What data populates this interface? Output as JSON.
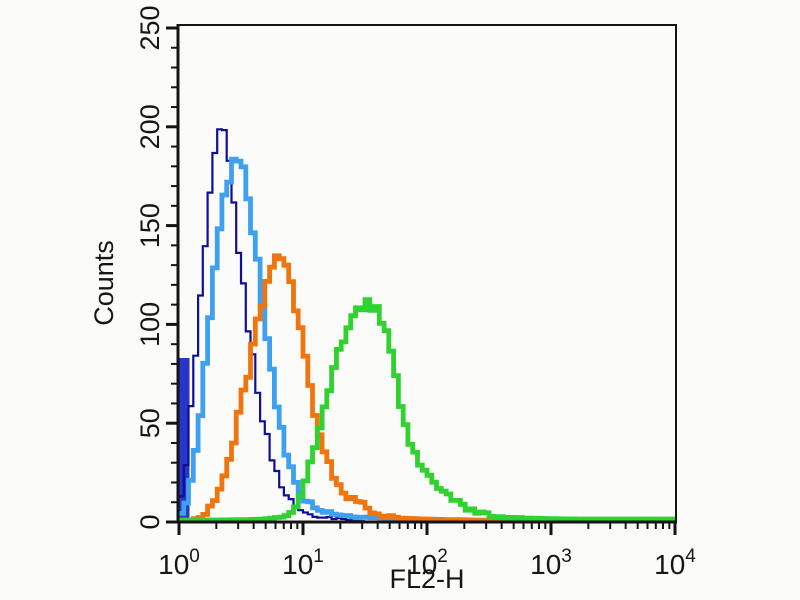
{
  "figure": {
    "background_color": "#FBFBF9",
    "axis_color": "#141414"
  },
  "chart": {
    "x_axis": {
      "label": "FL2-H",
      "scale": "log",
      "min": 1,
      "max": 10000,
      "major_ticks": [
        {
          "value": 1,
          "base": "10",
          "exp": "0"
        },
        {
          "value": 10,
          "base": "10",
          "exp": "1"
        },
        {
          "value": 100,
          "base": "10",
          "exp": "2"
        },
        {
          "value": 1000,
          "base": "10",
          "exp": "3"
        },
        {
          "value": 10000,
          "base": "10",
          "exp": "4"
        }
      ],
      "minor_tick_multipliers": [
        2,
        3,
        4,
        5,
        6,
        7,
        8,
        9
      ]
    },
    "y_axis": {
      "label": "Counts",
      "scale": "linear",
      "min": 0,
      "max": 250,
      "major_ticks": [
        {
          "value": 0,
          "label": "0"
        },
        {
          "value": 50,
          "label": "50"
        },
        {
          "value": 100,
          "label": "100"
        },
        {
          "value": 150,
          "label": "150"
        },
        {
          "value": 200,
          "label": "200"
        },
        {
          "value": 250,
          "label": "250"
        }
      ],
      "minor_tick_step": 10
    }
  },
  "chart_data": {
    "type": "line",
    "subtype": "flow-cytometry-overlay-histogram",
    "title": "",
    "xlabel": "FL2-H",
    "ylabel": "Counts",
    "x_scale": "log",
    "xlim": [
      1,
      10000
    ],
    "ylim": [
      0,
      250
    ],
    "grid": false,
    "legend": "none",
    "bins_per_decade": 26,
    "series": [
      {
        "name": "dark-blue-thin-control",
        "color": "#0E0E96",
        "line_width": 2.2,
        "peak_x": 2.2,
        "peak_count": 200,
        "points": [
          [
            1.0,
            5
          ],
          [
            1.1,
            20
          ],
          [
            1.2,
            45
          ],
          [
            1.35,
            80
          ],
          [
            1.5,
            115
          ],
          [
            1.7,
            152
          ],
          [
            1.9,
            180
          ],
          [
            2.05,
            193
          ],
          [
            2.2,
            200
          ],
          [
            2.35,
            194
          ],
          [
            2.55,
            180
          ],
          [
            2.8,
            158
          ],
          [
            3.1,
            132
          ],
          [
            3.5,
            105
          ],
          [
            4.0,
            80
          ],
          [
            4.6,
            57
          ],
          [
            5.3,
            38
          ],
          [
            6.2,
            24
          ],
          [
            7.3,
            14
          ],
          [
            8.6,
            8
          ],
          [
            10,
            5
          ],
          [
            12,
            3.5
          ],
          [
            15,
            2.5
          ],
          [
            19,
            2
          ],
          [
            24,
            1
          ],
          [
            30,
            0.4
          ]
        ]
      },
      {
        "name": "light-blue",
        "color": "#3FA0F0",
        "line_width": 4.8,
        "peak_x": 3.0,
        "peak_count": 183,
        "points": [
          [
            1.0,
            3
          ],
          [
            1.15,
            10
          ],
          [
            1.3,
            25
          ],
          [
            1.5,
            55
          ],
          [
            1.7,
            90
          ],
          [
            1.95,
            128
          ],
          [
            2.2,
            156
          ],
          [
            2.5,
            174
          ],
          [
            2.8,
            182
          ],
          [
            3.05,
            183
          ],
          [
            3.35,
            177
          ],
          [
            3.7,
            162
          ],
          [
            4.2,
            138
          ],
          [
            4.8,
            108
          ],
          [
            5.5,
            78
          ],
          [
            6.3,
            54
          ],
          [
            7.3,
            35
          ],
          [
            8.5,
            22
          ],
          [
            10,
            13
          ],
          [
            12,
            8
          ],
          [
            15,
            5
          ],
          [
            19,
            3.5
          ],
          [
            25,
            3
          ],
          [
            33,
            2.5
          ],
          [
            45,
            2
          ],
          [
            65,
            1.8
          ],
          [
            90,
            1.4
          ],
          [
            120,
            1
          ]
        ]
      },
      {
        "name": "orange",
        "color": "#F0750E",
        "line_width": 4.8,
        "peak_x": 6.4,
        "peak_count": 133,
        "points": [
          [
            1.3,
            1
          ],
          [
            1.6,
            4
          ],
          [
            1.9,
            10
          ],
          [
            2.3,
            22
          ],
          [
            2.8,
            42
          ],
          [
            3.4,
            68
          ],
          [
            4.1,
            95
          ],
          [
            4.9,
            117
          ],
          [
            5.7,
            129
          ],
          [
            6.4,
            133
          ],
          [
            7.2,
            129
          ],
          [
            8.2,
            117
          ],
          [
            9.4,
            98
          ],
          [
            10.8,
            76
          ],
          [
            12.5,
            55
          ],
          [
            14.5,
            38
          ],
          [
            17,
            25
          ],
          [
            20,
            16
          ],
          [
            23,
            12
          ],
          [
            26,
            14
          ],
          [
            30,
            9
          ],
          [
            36,
            5
          ],
          [
            45,
            3
          ],
          [
            60,
            2
          ],
          [
            85,
            1.6
          ],
          [
            130,
            1.3
          ],
          [
            200,
            1.1
          ],
          [
            300,
            0.9
          ],
          [
            400,
            0.6
          ]
        ]
      },
      {
        "name": "green",
        "color": "#2FD22F",
        "line_width": 4.8,
        "peak_x": 34,
        "peak_count": 111,
        "points": [
          [
            1.0,
            1
          ],
          [
            2.0,
            1
          ],
          [
            3.5,
            1.2
          ],
          [
            5,
            1.5
          ],
          [
            6.5,
            2.5
          ],
          [
            8,
            5
          ],
          [
            9,
            10
          ],
          [
            10,
            18
          ],
          [
            11.5,
            30
          ],
          [
            13.5,
            46
          ],
          [
            16,
            65
          ],
          [
            19,
            83
          ],
          [
            22,
            96
          ],
          [
            26,
            105
          ],
          [
            30,
            110
          ],
          [
            34,
            111
          ],
          [
            38,
            109
          ],
          [
            43,
            103
          ],
          [
            49,
            90
          ],
          [
            56,
            72
          ],
          [
            63,
            55
          ],
          [
            70,
            44
          ],
          [
            80,
            33
          ],
          [
            92,
            27
          ],
          [
            105,
            24
          ],
          [
            120,
            19
          ],
          [
            140,
            15
          ],
          [
            165,
            11
          ],
          [
            195,
            8
          ],
          [
            235,
            6
          ],
          [
            290,
            4
          ],
          [
            360,
            3
          ],
          [
            450,
            2.5
          ],
          [
            600,
            2
          ],
          [
            800,
            1.8
          ],
          [
            1200,
            1.6
          ],
          [
            2000,
            1.5
          ],
          [
            4000,
            1.5
          ],
          [
            7000,
            1.5
          ],
          [
            10000,
            1.5
          ]
        ]
      }
    ],
    "axis_spike_bar": {
      "name": "royal-blue-first-channel-spike",
      "color": "#2736C8",
      "x_from": 1.0,
      "x_to": 1.17,
      "count": 83
    }
  }
}
